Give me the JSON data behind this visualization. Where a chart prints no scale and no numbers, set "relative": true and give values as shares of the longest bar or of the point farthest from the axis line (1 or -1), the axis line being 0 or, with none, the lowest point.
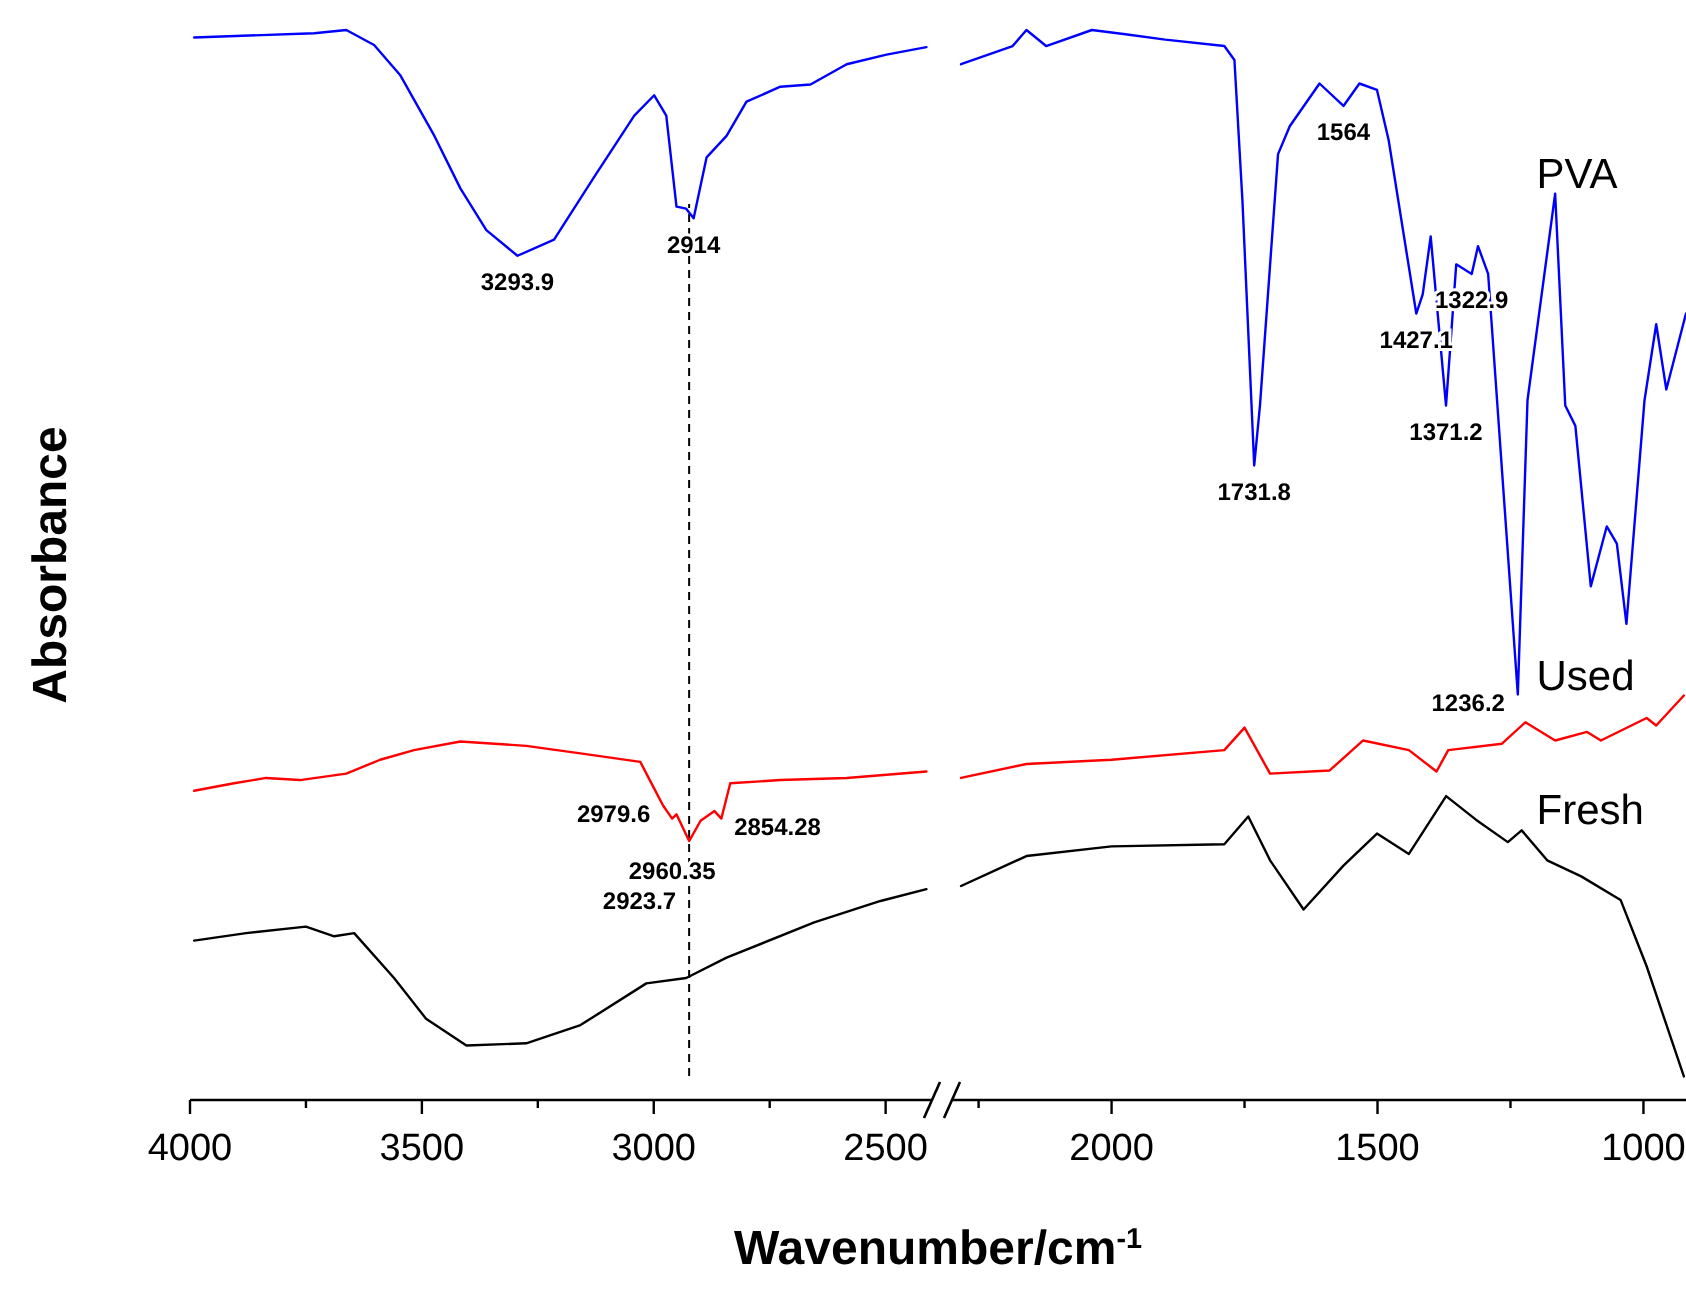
{
  "chart_data": [
    {
      "type": "line",
      "relative": true,
      "ylabel": "Absorbance",
      "xlabel": "Wavenumber/cm$^{-1}$",
      "xlim": [
        4000,
        2400
      ],
      "xticks": [
        4000,
        {
          "value": 3750,
          "label": null
        },
        3500,
        {
          "value": 3250,
          "label": null
        },
        3000,
        {
          "value": 2750,
          "label": null
        },
        2500
      ],
      "tick_labels": "x",
      "line_style": "solid",
      "marker": "none",
      "ref_lines": [
        {
          "axis": "x",
          "value": 2923.7,
          "color": "#000000",
          "line_style": "dashed"
        }
      ],
      "annotations": [
        {
          "text": "3293.9",
          "x": 3293.9,
          "y": 0.789
        },
        {
          "text": "2914",
          "x": 2914,
          "y": 0.824
        },
        {
          "text": "2979.6",
          "x": 2979.6,
          "y": 0.275
        },
        {
          "text": "2960.35",
          "x": 2960.35,
          "y": 0.263
        },
        {
          "text": "2923.7",
          "x": 2923.7,
          "y": 0.242
        },
        {
          "text": "2854.28",
          "x": 2854.28,
          "y": 0.263
        }
      ],
      "series": [
        {
          "color": "#0000ff",
          "x": [
            3991,
            3732,
            3663,
            3603,
            3547,
            3473,
            3417,
            3361,
            3293.9,
            3215,
            3128,
            3042,
            2999,
            2973,
            2951,
            2930,
            2914,
            2886,
            2843,
            2800,
            2727,
            2662,
            2584,
            2498,
            2412
          ],
          "values": [
            0.993,
            0.997,
            1.0,
            0.986,
            0.958,
            0.901,
            0.852,
            0.813,
            0.789,
            0.804,
            0.863,
            0.92,
            0.939,
            0.92,
            0.835,
            0.833,
            0.824,
            0.881,
            0.901,
            0.933,
            0.947,
            0.949,
            0.968,
            0.977,
            0.984
          ]
        },
        {
          "color": "#ff0000",
          "x": [
            3991,
            3905,
            3836,
            3763,
            3663,
            3590,
            3517,
            3417,
            3275,
            3158,
            3029,
            2999,
            2979.6,
            2960.35,
            2951,
            2923.7,
            2899,
            2869,
            2854.28,
            2835,
            2727,
            2584,
            2412
          ],
          "values": [
            0.289,
            0.296,
            0.301,
            0.299,
            0.305,
            0.318,
            0.327,
            0.335,
            0.331,
            0.324,
            0.316,
            0.291,
            0.275,
            0.263,
            0.267,
            0.242,
            0.261,
            0.27,
            0.263,
            0.296,
            0.299,
            0.301,
            0.307
          ]
        },
        {
          "color": "#000000",
          "x": [
            3991,
            3879,
            3750,
            3689,
            3646,
            3560,
            3491,
            3404,
            3275,
            3158,
            3016,
            2930,
            2843,
            2654,
            2511,
            2412
          ],
          "values": [
            0.149,
            0.156,
            0.162,
            0.153,
            0.156,
            0.114,
            0.076,
            0.051,
            0.053,
            0.07,
            0.109,
            0.114,
            0.133,
            0.166,
            0.186,
            0.197
          ]
        }
      ]
    },
    {
      "type": "line",
      "relative": true,
      "xlim": [
        2300,
        920
      ],
      "xticks": [
        {
          "value": 2250,
          "label": null
        },
        2000,
        {
          "value": 1750,
          "label": null
        },
        1500,
        {
          "value": 1250,
          "label": null
        },
        1000
      ],
      "tick_labels": "x",
      "line_style": "solid",
      "marker": "none",
      "annotations": [
        {
          "text": "1731.8",
          "x": 1731.8,
          "y": 0.593
        },
        {
          "text": "1564",
          "x": 1564,
          "y": 0.929
        },
        {
          "text": "1427.1",
          "x": 1427.1,
          "y": 0.735
        },
        {
          "text": "1371.2",
          "x": 1371.2,
          "y": 0.649
        },
        {
          "text": "1322.9",
          "x": 1322.9,
          "y": 0.772
        },
        {
          "text": "1236.2",
          "x": 1236.2,
          "y": 0.379
        }
      ],
      "series": [
        {
          "name": "PVA",
          "color": "#0000ff",
          "x": [
            2283,
            2186,
            2160,
            2123,
            2037,
            1974,
            1899,
            1788,
            1769,
            1754,
            1731.8,
            1721,
            1687,
            1665,
            1609,
            1564,
            1534,
            1501,
            1479,
            1427.1,
            1415,
            1400,
            1371.2,
            1352,
            1322.9,
            1311,
            1292,
            1236.2,
            1218,
            1166,
            1147,
            1128,
            1099,
            1069,
            1050,
            1032,
            998,
            976,
            957,
            920
          ],
          "values": [
            0.968,
            0.985,
            1.0,
            0.985,
            1.0,
            0.996,
            0.991,
            0.985,
            0.972,
            0.841,
            0.593,
            0.649,
            0.884,
            0.91,
            0.95,
            0.929,
            0.95,
            0.944,
            0.897,
            0.735,
            0.753,
            0.807,
            0.649,
            0.781,
            0.772,
            0.798,
            0.772,
            0.379,
            0.654,
            0.847,
            0.649,
            0.63,
            0.48,
            0.536,
            0.52,
            0.445,
            0.654,
            0.725,
            0.664,
            0.735
          ]
        },
        {
          "name": "Used",
          "color": "#ff0000",
          "x": [
            2283,
            2160,
            2000,
            1788,
            1750,
            1702,
            1590,
            1527,
            1441,
            1389,
            1367,
            1266,
            1222,
            1166,
            1106,
            1080,
            994,
            976,
            924
          ],
          "values": [
            0.301,
            0.314,
            0.318,
            0.327,
            0.348,
            0.305,
            0.308,
            0.336,
            0.327,
            0.307,
            0.327,
            0.333,
            0.353,
            0.336,
            0.344,
            0.336,
            0.357,
            0.35,
            0.378
          ]
        },
        {
          "name": "Fresh",
          "color": "#000000",
          "x": [
            2283,
            2160,
            2000,
            1788,
            1743,
            1702,
            1639,
            1564,
            1501,
            1441,
            1371,
            1315,
            1255,
            1229,
            1181,
            1117,
            1043,
            994,
            924
          ],
          "values": [
            0.2,
            0.228,
            0.237,
            0.239,
            0.265,
            0.224,
            0.178,
            0.219,
            0.249,
            0.23,
            0.284,
            0.262,
            0.241,
            0.252,
            0.224,
            0.209,
            0.187,
            0.125,
            0.022
          ]
        }
      ]
    }
  ]
}
